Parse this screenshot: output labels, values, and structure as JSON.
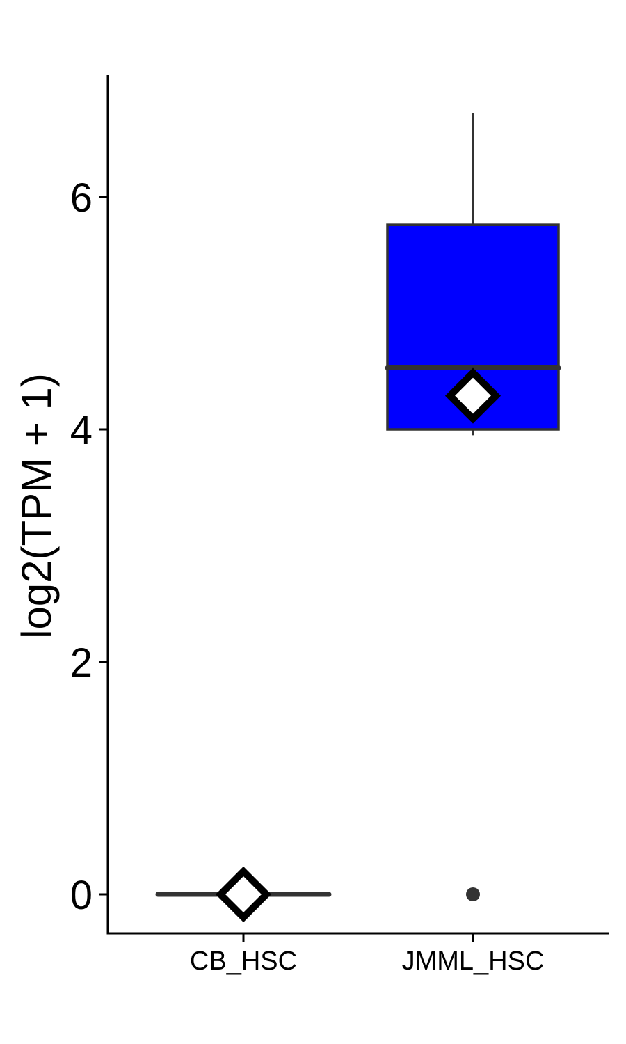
{
  "chart_data": {
    "type": "box",
    "title": "",
    "xlabel": "",
    "ylabel": "log2(TPM + 1)",
    "ylim": [
      -0.34,
      7.05
    ],
    "yticks": [
      0,
      2,
      4,
      6
    ],
    "grid": false,
    "legend": "none",
    "categories": [
      "CB_HSC",
      "JMML_HSC"
    ],
    "boxes": [
      {
        "category": "CB_HSC",
        "min": 0,
        "q1": 0,
        "median": 0,
        "q3": 0,
        "max": 0,
        "mean": 0,
        "outliers": [],
        "fill": "#0000ff"
      },
      {
        "category": "JMML_HSC",
        "min": 3.95,
        "q1": 4.0,
        "median": 4.53,
        "q3": 5.76,
        "max": 6.72,
        "mean": 4.29,
        "outliers": [
          0
        ],
        "fill": "#0000ff"
      }
    ],
    "colors": {
      "box_outline": "#333333",
      "mean_marker_fill": "#ffffff",
      "mean_marker_stroke": "#000000",
      "axis": "#000000"
    }
  }
}
